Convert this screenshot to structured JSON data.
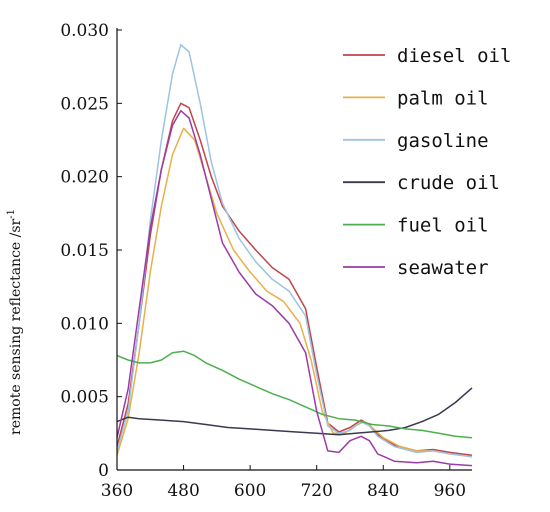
{
  "chart_data": {
    "type": "line",
    "title": "",
    "xlabel": "",
    "ylabel": "remote sensing reflectance /sr",
    "ylabel_superscript": "-1",
    "xlim": [
      360,
      1000
    ],
    "ylim": [
      0,
      0.03
    ],
    "x_ticks": [
      360,
      480,
      600,
      720,
      840,
      960
    ],
    "y_ticks": [
      0,
      0.005,
      0.01,
      0.015,
      0.02,
      0.025,
      0.03
    ],
    "y_tick_labels": [
      "0",
      "0.005",
      "0.010",
      "0.015",
      "0.020",
      "0.025",
      "0.030"
    ],
    "grid": false,
    "legend": "top-right",
    "series": [
      {
        "name": "diesel oil",
        "color": "#c0464a",
        "points": [
          [
            360,
            0.0016
          ],
          [
            380,
            0.0045
          ],
          [
            400,
            0.01
          ],
          [
            420,
            0.016
          ],
          [
            440,
            0.0205
          ],
          [
            460,
            0.0238
          ],
          [
            475,
            0.025
          ],
          [
            490,
            0.0247
          ],
          [
            510,
            0.0225
          ],
          [
            530,
            0.02
          ],
          [
            550,
            0.018
          ],
          [
            580,
            0.0163
          ],
          [
            610,
            0.015
          ],
          [
            640,
            0.0138
          ],
          [
            670,
            0.013
          ],
          [
            700,
            0.011
          ],
          [
            720,
            0.007
          ],
          [
            740,
            0.0032
          ],
          [
            760,
            0.0026
          ],
          [
            780,
            0.0029
          ],
          [
            800,
            0.0034
          ],
          [
            815,
            0.0031
          ],
          [
            830,
            0.0024
          ],
          [
            860,
            0.0017
          ],
          [
            900,
            0.0013
          ],
          [
            930,
            0.0014
          ],
          [
            960,
            0.0012
          ],
          [
            1000,
            0.001
          ]
        ]
      },
      {
        "name": "palm oil",
        "color": "#e7b04a",
        "points": [
          [
            360,
            0.001
          ],
          [
            380,
            0.0035
          ],
          [
            400,
            0.008
          ],
          [
            420,
            0.0135
          ],
          [
            440,
            0.018
          ],
          [
            460,
            0.0215
          ],
          [
            480,
            0.0233
          ],
          [
            500,
            0.0225
          ],
          [
            520,
            0.02
          ],
          [
            540,
            0.0175
          ],
          [
            570,
            0.015
          ],
          [
            600,
            0.0135
          ],
          [
            630,
            0.0122
          ],
          [
            660,
            0.0115
          ],
          [
            690,
            0.01
          ],
          [
            710,
            0.0075
          ],
          [
            730,
            0.004
          ],
          [
            750,
            0.0025
          ],
          [
            770,
            0.0025
          ],
          [
            790,
            0.003
          ],
          [
            805,
            0.0033
          ],
          [
            820,
            0.0029
          ],
          [
            840,
            0.0022
          ],
          [
            870,
            0.0016
          ],
          [
            900,
            0.0013
          ],
          [
            930,
            0.0013
          ],
          [
            960,
            0.0011
          ],
          [
            1000,
            0.0009
          ]
        ]
      },
      {
        "name": "gasoline",
        "color": "#9cc4e4",
        "points": [
          [
            360,
            0.0013
          ],
          [
            380,
            0.004
          ],
          [
            400,
            0.01
          ],
          [
            420,
            0.017
          ],
          [
            440,
            0.0225
          ],
          [
            460,
            0.027
          ],
          [
            475,
            0.029
          ],
          [
            490,
            0.0285
          ],
          [
            510,
            0.025
          ],
          [
            530,
            0.021
          ],
          [
            550,
            0.0182
          ],
          [
            580,
            0.0158
          ],
          [
            610,
            0.0142
          ],
          [
            640,
            0.013
          ],
          [
            670,
            0.0122
          ],
          [
            700,
            0.0105
          ],
          [
            720,
            0.0065
          ],
          [
            740,
            0.003
          ],
          [
            760,
            0.0025
          ],
          [
            780,
            0.0027
          ],
          [
            800,
            0.0033
          ],
          [
            815,
            0.003
          ],
          [
            830,
            0.0023
          ],
          [
            860,
            0.0016
          ],
          [
            900,
            0.0012
          ],
          [
            930,
            0.0013
          ],
          [
            960,
            0.0011
          ],
          [
            1000,
            0.0009
          ]
        ]
      },
      {
        "name": "crude oil",
        "color": "#3a3950",
        "points": [
          [
            360,
            0.0033
          ],
          [
            380,
            0.0036
          ],
          [
            400,
            0.0035
          ],
          [
            440,
            0.0034
          ],
          [
            480,
            0.0033
          ],
          [
            520,
            0.0031
          ],
          [
            560,
            0.0029
          ],
          [
            600,
            0.0028
          ],
          [
            640,
            0.0027
          ],
          [
            680,
            0.0026
          ],
          [
            720,
            0.0025
          ],
          [
            760,
            0.0024
          ],
          [
            790,
            0.0025
          ],
          [
            820,
            0.0026
          ],
          [
            850,
            0.0027
          ],
          [
            880,
            0.0029
          ],
          [
            910,
            0.0033
          ],
          [
            940,
            0.0038
          ],
          [
            970,
            0.0046
          ],
          [
            1000,
            0.0056
          ]
        ]
      },
      {
        "name": "fuel oil",
        "color": "#4caf50",
        "points": [
          [
            360,
            0.0078
          ],
          [
            380,
            0.0075
          ],
          [
            400,
            0.0073
          ],
          [
            420,
            0.0073
          ],
          [
            440,
            0.0075
          ],
          [
            460,
            0.008
          ],
          [
            480,
            0.0081
          ],
          [
            500,
            0.0078
          ],
          [
            520,
            0.0073
          ],
          [
            550,
            0.0068
          ],
          [
            580,
            0.0062
          ],
          [
            610,
            0.0057
          ],
          [
            640,
            0.0052
          ],
          [
            670,
            0.0048
          ],
          [
            700,
            0.0043
          ],
          [
            730,
            0.0038
          ],
          [
            760,
            0.0035
          ],
          [
            790,
            0.0034
          ],
          [
            820,
            0.0031
          ],
          [
            850,
            0.003
          ],
          [
            880,
            0.0028
          ],
          [
            910,
            0.0027
          ],
          [
            940,
            0.0025
          ],
          [
            970,
            0.0023
          ],
          [
            1000,
            0.0022
          ]
        ]
      },
      {
        "name": "seawater",
        "color": "#9c3ba8",
        "points": [
          [
            360,
            0.0022
          ],
          [
            380,
            0.0055
          ],
          [
            400,
            0.011
          ],
          [
            420,
            0.0165
          ],
          [
            440,
            0.0205
          ],
          [
            460,
            0.0235
          ],
          [
            475,
            0.0245
          ],
          [
            490,
            0.024
          ],
          [
            510,
            0.0215
          ],
          [
            530,
            0.0185
          ],
          [
            550,
            0.0155
          ],
          [
            580,
            0.0135
          ],
          [
            610,
            0.012
          ],
          [
            640,
            0.0112
          ],
          [
            670,
            0.01
          ],
          [
            700,
            0.008
          ],
          [
            720,
            0.004
          ],
          [
            740,
            0.0013
          ],
          [
            760,
            0.0012
          ],
          [
            780,
            0.002
          ],
          [
            800,
            0.0023
          ],
          [
            815,
            0.002
          ],
          [
            830,
            0.0011
          ],
          [
            860,
            0.0006
          ],
          [
            900,
            0.0005
          ],
          [
            930,
            0.0006
          ],
          [
            960,
            0.0004
          ],
          [
            1000,
            0.0003
          ]
        ]
      }
    ]
  }
}
